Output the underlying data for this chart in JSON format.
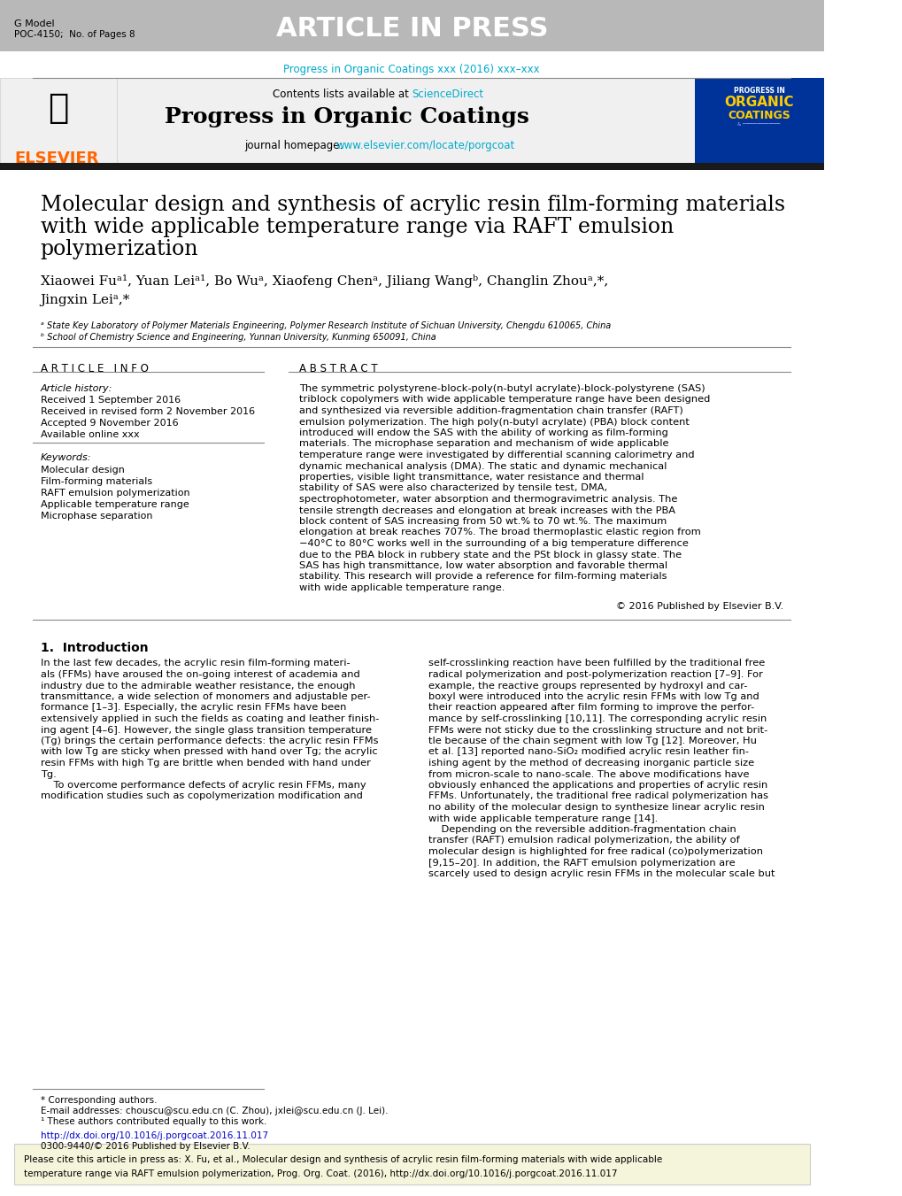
{
  "page_bg": "#ffffff",
  "header_bar_color": "#b0b0b0",
  "header_bar_height": 0.045,
  "g_model_text": "G Model\nPOC-4150;  No. of Pages 8",
  "article_in_press_text": "ARTICLE IN PRESS",
  "journal_ref_text": "Progress in Organic Coatings xxx (2016) xxx–xxx",
  "journal_ref_color": "#00aacc",
  "contents_text": "Contents lists available at ",
  "science_direct_text": "ScienceDirect",
  "science_direct_color": "#00aacc",
  "journal_name": "Progress in Organic Coatings",
  "journal_homepage_text": "journal homepage: ",
  "journal_homepage_url": "www.elsevier.com/locate/porgcoat",
  "journal_homepage_color": "#00aacc",
  "black_bar_color": "#1a1a1a",
  "article_title": "Molecular design and synthesis of acrylic resin film-forming materials\nwith wide applicable temperature range via RAFT emulsion\npolymerization",
  "authors": "Xiaowei Fu",
  "author_superscripts": "a, 1",
  "affil_a": "ᵃ State Key Laboratory of Polymer Materials Engineering, Polymer Research Institute of Sichuan University, Chengdu 610065, China",
  "affil_b": "ᵇ School of Chemistry Science and Engineering, Yunnan University, Kunming 650091, China",
  "article_info_header": "A R T I C L E   I N F O",
  "abstract_header": "A B S T R A C T",
  "article_history_label": "Article history:",
  "received_1": "Received 1 September 2016",
  "received_2": "Received in revised form 2 November 2016",
  "accepted": "Accepted 9 November 2016",
  "available": "Available online xxx",
  "keywords_label": "Keywords:",
  "keywords": [
    "Molecular design",
    "Film-forming materials",
    "RAFT emulsion polymerization",
    "Applicable temperature range",
    "Microphase separation"
  ],
  "abstract_text": "The symmetric polystyrene-block-poly(n-butyl acrylate)-block-polystyrene (SAS) triblock copolymers with wide applicable temperature range have been designed and synthesized via reversible addition-fragmentation chain transfer (RAFT) emulsion polymerization. The high poly(n-butyl acrylate) (PBA) block content introduced will endow the SAS with the ability of working as film-forming materials. The microphase separation and mechanism of wide applicable temperature range were investigated by differential scanning calorimetry and dynamic mechanical analysis (DMA). The static and dynamic mechanical properties, visible light transmittance, water resistance and thermal stability of SAS were also characterized by tensile test, DMA, spectrophotometer, water absorption and thermogravimetric analysis. The tensile strength decreases and elongation at break increases with the PBA block content of SAS increasing from 50 wt.% to 70 wt.%. The maximum elongation at break reaches 707%. The broad thermoplastic elastic region from −40°C to 80°C works well in the surrounding of a big temperature difference due to the PBA block in rubbery state and the PSt block in glassy state. The SAS has high transmittance, low water absorption and favorable thermal stability. This research will provide a reference for film-forming materials with wide applicable temperature range.",
  "copyright_text": "© 2016 Published by Elsevier B.V.",
  "intro_header": "1.  Introduction",
  "intro_col1": "In the last few decades, the acrylic resin film-forming materials (FFMs) have aroused the on-going interest of academia and industry due to the admirable weather resistance, the enough transmittance, a wide selection of monomers and adjustable performance [1–3]. Especially, the acrylic resin FFMs have been extensively applied in such the fields as coating and leather finishing agent [4–6]. However, the single glass transition temperature (Tg) brings the certain performance defects: the acrylic resin FFMs with low Tg are sticky when pressed with hand over Tg; the acrylic resin FFMs with high Tg are brittle when bended with hand under Tg.\n    To overcome performance defects of acrylic resin FFMs, many modification studies such as copolymerization modification and",
  "intro_col2": "self-crosslinking reaction have been fulfilled by the traditional free radical polymerization and post-polymerization reaction [7–9]. For example, the reactive groups represented by hydroxyl and carboxyl were introduced into the acrylic resin FFMs with low Tg and their reaction appeared after film forming to improve the performance by self-crosslinking [10,11]. The corresponding acrylic resin FFMs were not sticky due to the crosslinking structure and not brittle because of the chain segment with low Tg [12]. Moreover, Hu et al. [13] reported nano-SiO₂ modified acrylic resin leather finishing agent by the method of decreasing inorganic particle size from micron-scale to nano-scale. The above modifications have obviously enhanced the applications and properties of acrylic resin FFMs. Unfortunately, the traditional free radical polymerization has no ability of the molecular design to synthesize linear acrylic resin with wide applicable temperature range [14].\n    Depending on the reversible addition-fragmentation chain transfer (RAFT) emulsion radical polymerization, the ability of molecular design is highlighted for free radical (co)polymerization [9,15–20]. In addition, the RAFT emulsion polymerization are scarcely used to design acrylic resin FFMs in the molecular scale but",
  "footnote_corresponding": "* Corresponding authors.",
  "footnote_email": "E-mail addresses: chouscu@scu.edu.cn (C. Zhou), jxlei@scu.edu.cn (J. Lei).",
  "footnote_equal": "¹ These authors contributed equally to this work.",
  "doi_text": "http://dx.doi.org/10.1016/j.porgcoat.2016.11.017",
  "doi_color": "#0000cc",
  "issn_text": "0300-9440/© 2016 Published by Elsevier B.V.",
  "cite_box_text": "Please cite this article in press as: X. Fu, et al., Molecular design and synthesis of acrylic resin film-forming materials with wide applicable\ntemperature range via RAFT emulsion polymerization, Prog. Org. Coat. (2016), http://dx.doi.org/10.1016/j.porgcoat.2016.11.017",
  "cite_box_bg": "#f5f5dc",
  "cite_box_border": "#cccccc"
}
